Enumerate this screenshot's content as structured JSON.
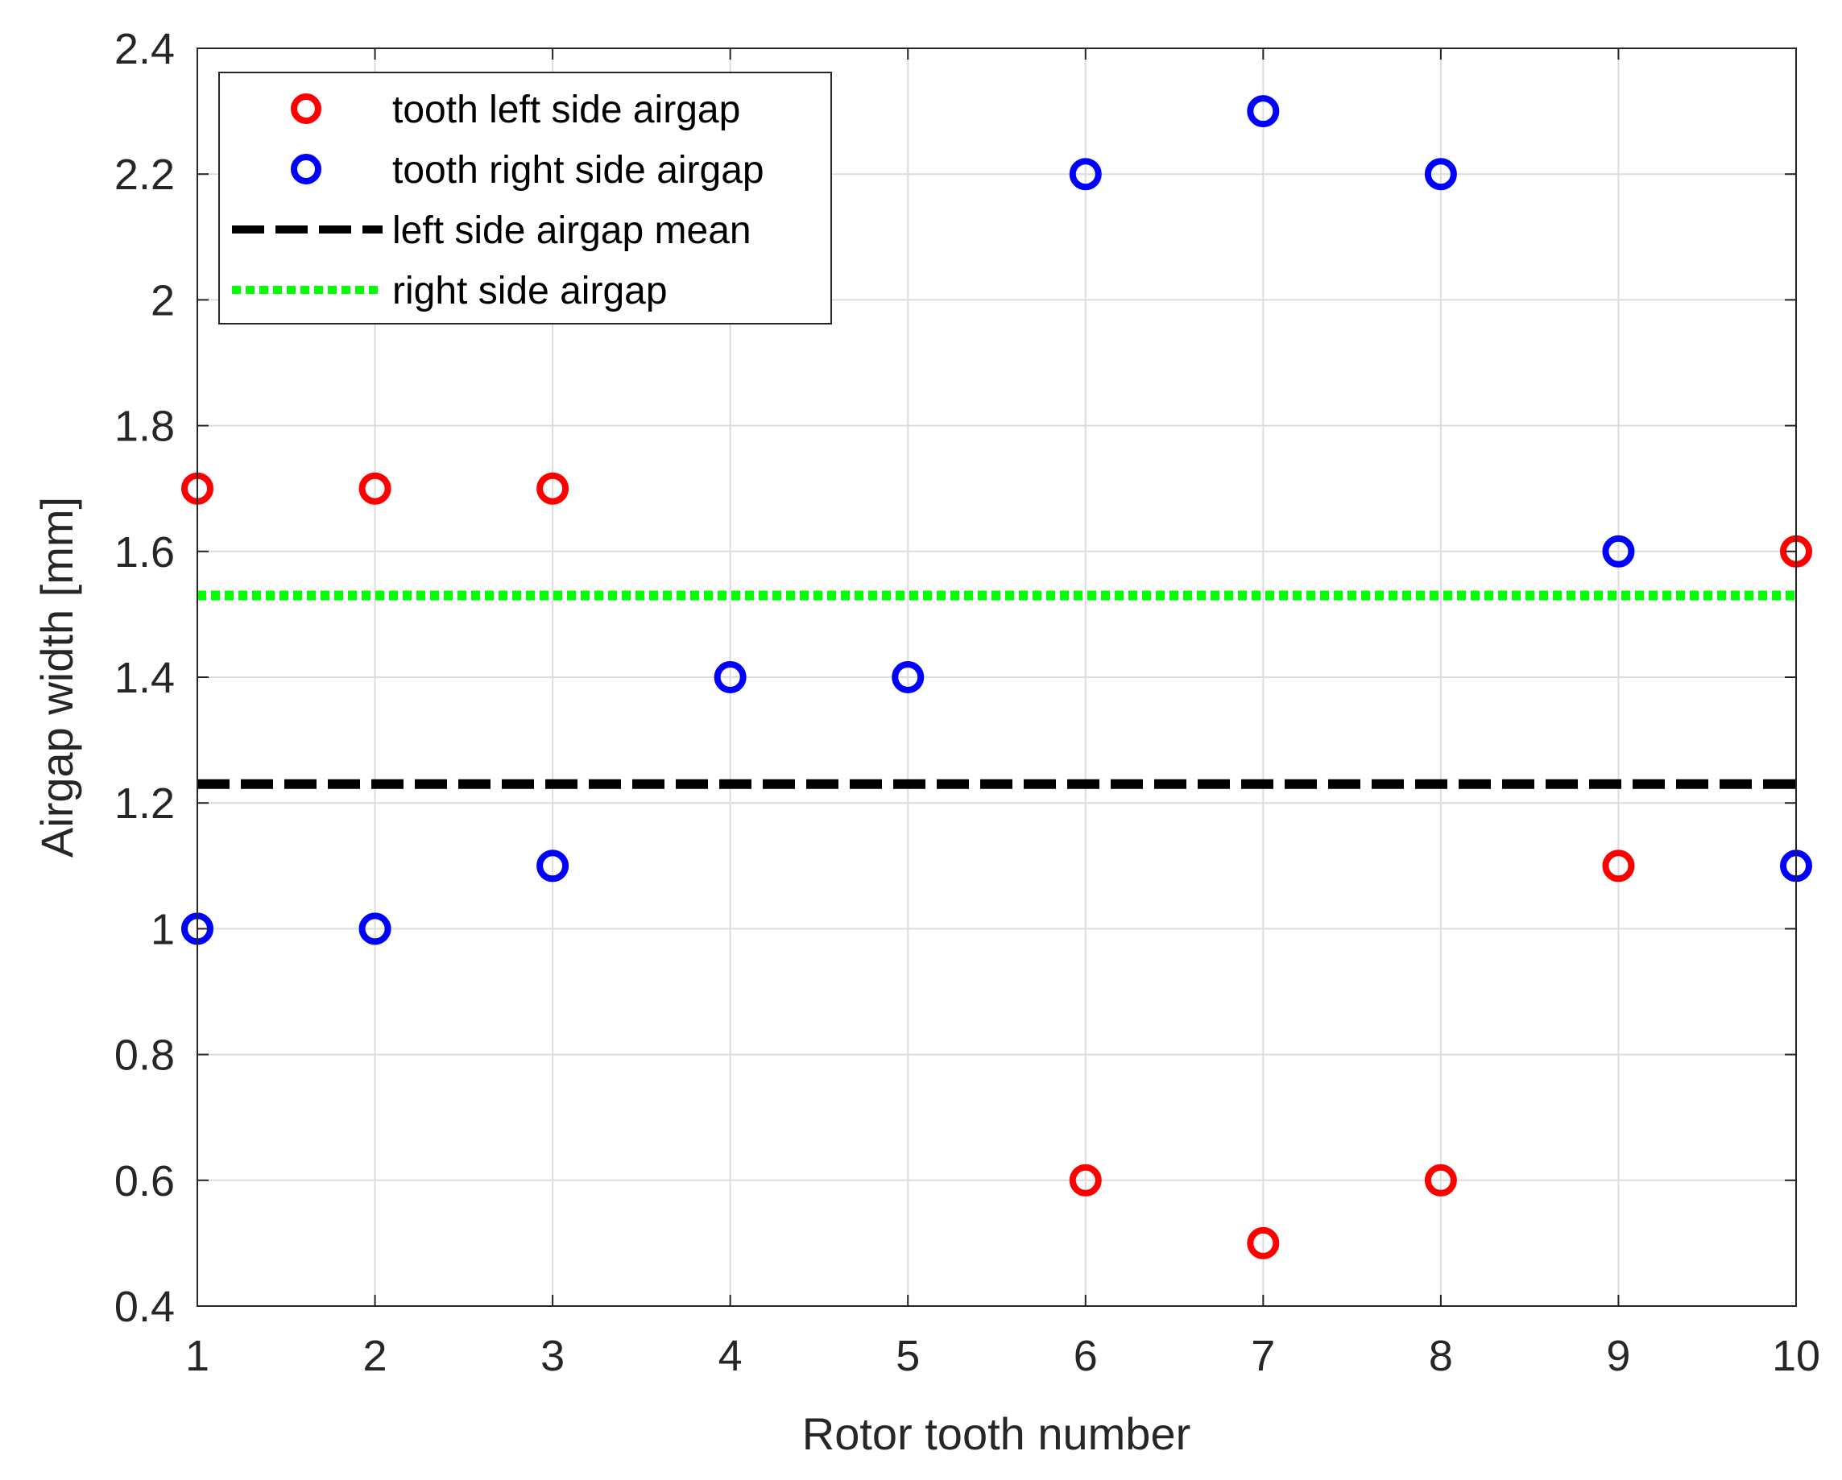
{
  "chart_data": {
    "type": "scatter",
    "xlabel": "Rotor tooth number",
    "ylabel": "Airgap width [mm]",
    "xlim": [
      1,
      10
    ],
    "ylim": [
      0.4,
      2.4
    ],
    "xticks": [
      1,
      2,
      3,
      4,
      5,
      6,
      7,
      8,
      9,
      10
    ],
    "yticks": [
      0.4,
      0.6,
      0.8,
      1,
      1.2,
      1.4,
      1.6,
      1.8,
      2,
      2.2,
      2.4
    ],
    "ytick_labels": [
      "0.4",
      "0.6",
      "0.8",
      "1",
      "1.2",
      "1.4",
      "1.6",
      "1.8",
      "2",
      "2.2",
      "2.4"
    ],
    "grid": true,
    "legend_position": "top-left",
    "series": [
      {
        "name": "tooth left side airgap",
        "kind": "markers",
        "marker": "circle",
        "color": "#ff0000",
        "x": [
          1,
          2,
          3,
          6,
          7,
          8,
          9,
          10
        ],
        "y": [
          1.7,
          1.7,
          1.7,
          0.6,
          0.5,
          0.6,
          1.1,
          1.6
        ]
      },
      {
        "name": "tooth right side airgap",
        "kind": "markers",
        "marker": "circle",
        "color": "#0000ff",
        "x": [
          1,
          2,
          3,
          4,
          5,
          6,
          7,
          8,
          9,
          10
        ],
        "y": [
          1.0,
          1.0,
          1.1,
          1.4,
          1.4,
          2.2,
          2.3,
          2.2,
          1.6,
          1.1
        ]
      },
      {
        "name": "left side airgap mean",
        "kind": "hline",
        "style": "dashed",
        "color": "#000000",
        "y": 1.23
      },
      {
        "name": "right side airgap",
        "kind": "hline",
        "style": "dotted",
        "color": "#00ff00",
        "y": 1.53
      }
    ]
  }
}
